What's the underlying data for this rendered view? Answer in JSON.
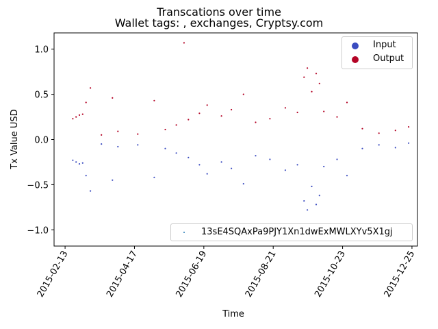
{
  "chart_data": {
    "type": "scatter",
    "title": "Transcations over time",
    "subtitle": "Wallet tags: , exchanges, Cryptsy.com",
    "xlabel": "Time",
    "ylabel": "Tx Value USD",
    "xlim": [
      "2015-02-03",
      "2015-12-30"
    ],
    "ylim": [
      -1.18,
      1.18
    ],
    "x_ticks": [
      "2015-02-13",
      "2015-04-17",
      "2015-06-19",
      "2015-08-21",
      "2015-10-23",
      "2015-12-25"
    ],
    "y_ticks": [
      -1.0,
      -0.5,
      0.0,
      0.5,
      1.0
    ],
    "y_tick_labels": [
      "−1.0",
      "−0.5",
      "0.0",
      "0.5",
      "1.0"
    ],
    "grid": false,
    "legend_position": "top-right",
    "series": [
      {
        "name": "Input",
        "color": "#3b4cc0",
        "points": [
          [
            "2015-02-20",
            -0.23
          ],
          [
            "2015-02-23",
            -0.25
          ],
          [
            "2015-02-26",
            -0.27
          ],
          [
            "2015-03-01",
            -0.26
          ],
          [
            "2015-03-04",
            -0.4
          ],
          [
            "2015-03-08",
            -0.57
          ],
          [
            "2015-03-28",
            -0.45
          ],
          [
            "2015-05-05",
            -0.42
          ],
          [
            "2015-03-18",
            -0.05
          ],
          [
            "2015-04-02",
            -0.08
          ],
          [
            "2015-04-20",
            -0.06
          ],
          [
            "2015-05-15",
            -0.1
          ],
          [
            "2015-05-25",
            -0.15
          ],
          [
            "2015-06-05",
            -0.2
          ],
          [
            "2015-06-15",
            -0.28
          ],
          [
            "2015-06-22",
            -0.38
          ],
          [
            "2015-07-05",
            -0.25
          ],
          [
            "2015-07-14",
            -0.32
          ],
          [
            "2015-07-25",
            -0.49
          ],
          [
            "2015-08-05",
            -0.18
          ],
          [
            "2015-08-18",
            -0.22
          ],
          [
            "2015-09-01",
            -0.34
          ],
          [
            "2015-09-12",
            -0.28
          ],
          [
            "2015-09-18",
            -0.68
          ],
          [
            "2015-09-21",
            -0.78
          ],
          [
            "2015-09-25",
            -0.52
          ],
          [
            "2015-09-29",
            -0.72
          ],
          [
            "2015-10-02",
            -0.62
          ],
          [
            "2015-10-06",
            -0.3
          ],
          [
            "2015-10-18",
            -0.22
          ],
          [
            "2015-10-27",
            -0.4
          ],
          [
            "2015-11-10",
            -0.1
          ],
          [
            "2015-11-25",
            -0.06
          ],
          [
            "2015-12-10",
            -0.09
          ],
          [
            "2015-12-22",
            -0.04
          ]
        ]
      },
      {
        "name": "Output",
        "color": "#b40426",
        "points": [
          [
            "2015-02-20",
            0.23
          ],
          [
            "2015-02-23",
            0.25
          ],
          [
            "2015-02-26",
            0.27
          ],
          [
            "2015-03-01",
            0.28
          ],
          [
            "2015-03-04",
            0.41
          ],
          [
            "2015-03-08",
            0.57
          ],
          [
            "2015-03-28",
            0.46
          ],
          [
            "2015-05-05",
            0.43
          ],
          [
            "2015-06-01",
            1.07
          ],
          [
            "2015-03-18",
            0.05
          ],
          [
            "2015-04-02",
            0.09
          ],
          [
            "2015-04-20",
            0.06
          ],
          [
            "2015-05-15",
            0.11
          ],
          [
            "2015-05-25",
            0.16
          ],
          [
            "2015-06-05",
            0.22
          ],
          [
            "2015-06-15",
            0.29
          ],
          [
            "2015-06-22",
            0.38
          ],
          [
            "2015-07-05",
            0.26
          ],
          [
            "2015-07-14",
            0.33
          ],
          [
            "2015-07-25",
            0.5
          ],
          [
            "2015-08-05",
            0.19
          ],
          [
            "2015-08-18",
            0.23
          ],
          [
            "2015-09-01",
            0.35
          ],
          [
            "2015-09-12",
            0.3
          ],
          [
            "2015-09-18",
            0.69
          ],
          [
            "2015-09-21",
            0.79
          ],
          [
            "2015-09-25",
            0.53
          ],
          [
            "2015-09-29",
            0.73
          ],
          [
            "2015-10-02",
            0.62
          ],
          [
            "2015-10-06",
            0.31
          ],
          [
            "2015-10-18",
            0.25
          ],
          [
            "2015-10-27",
            0.41
          ],
          [
            "2015-11-10",
            0.12
          ],
          [
            "2015-11-25",
            0.07
          ],
          [
            "2015-12-10",
            0.1
          ],
          [
            "2015-12-22",
            0.14
          ]
        ]
      }
    ],
    "wallet_series": {
      "name": "13sE4SQAxPa9PJY1Xn1dwExMWLXYv5X1gj",
      "color": "#1f77b4",
      "values_shown": "none visible"
    }
  }
}
